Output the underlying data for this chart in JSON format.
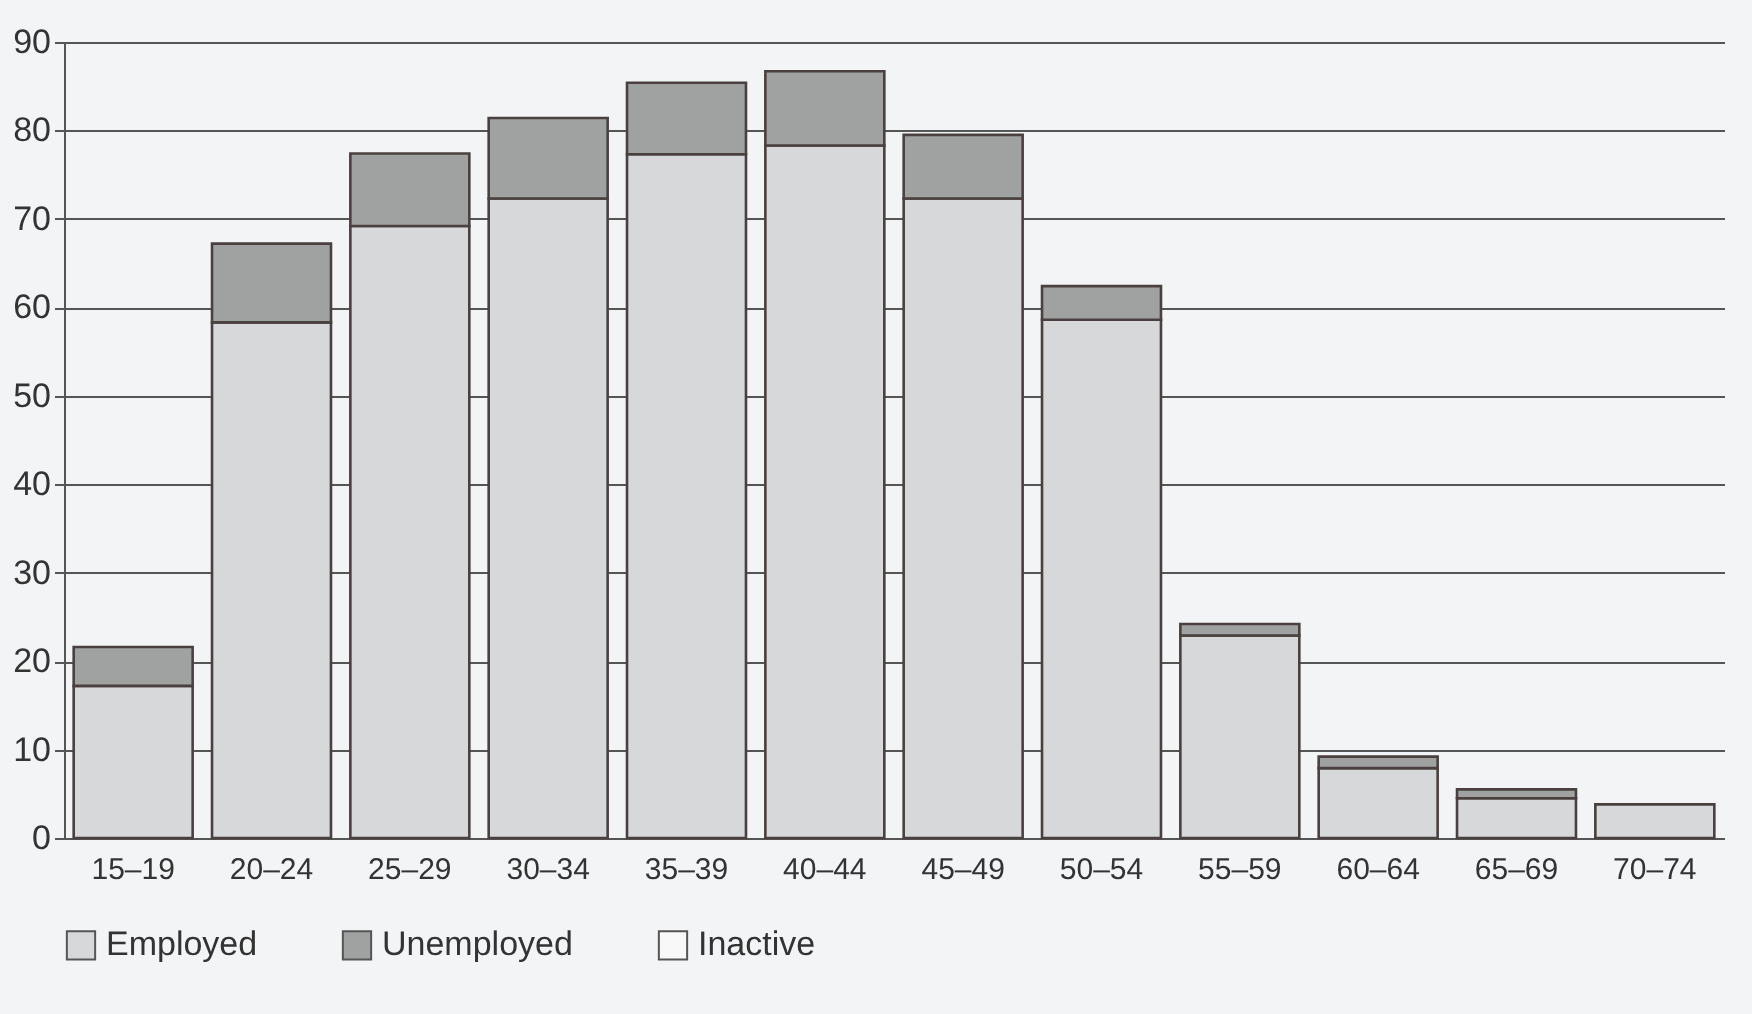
{
  "chart_data": {
    "type": "bar",
    "stacked": true,
    "categories": [
      "15–19",
      "20–24",
      "25–29",
      "30–34",
      "35–39",
      "40–44",
      "45–49",
      "50–54",
      "55–59",
      "60–64",
      "65–69",
      "70–74"
    ],
    "series": [
      {
        "name": "Employed",
        "color": "#d6d8da",
        "values": [
          17.2,
          58.3,
          69.2,
          72.3,
          77.3,
          78.3,
          72.3,
          58.6,
          22.9,
          7.9,
          4.5,
          3.8
        ]
      },
      {
        "name": "Unemployed",
        "color": "#a0a2a2",
        "values": [
          4.4,
          8.9,
          8.2,
          9.1,
          8.1,
          8.4,
          7.2,
          3.8,
          1.3,
          1.3,
          1.0,
          null
        ]
      },
      {
        "name": "Inactive",
        "color": "#f8f8f8",
        "values": [
          null,
          null,
          null,
          null,
          null,
          null,
          null,
          null,
          null,
          null,
          null,
          null
        ]
      }
    ],
    "ylim": [
      0,
      90
    ],
    "yticks": [
      0,
      10,
      20,
      30,
      40,
      50,
      60,
      70,
      80,
      90
    ],
    "grid": "y",
    "legend": "bottom"
  }
}
